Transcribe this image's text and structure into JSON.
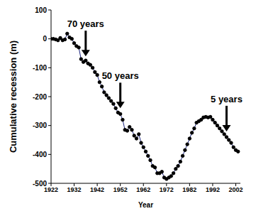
{
  "chart_data": {
    "type": "line",
    "x_label": "Year",
    "y_label": "Cumulative recession (m)",
    "x": [
      1922,
      1923,
      1924,
      1925,
      1926,
      1927,
      1928,
      1929,
      1930,
      1931,
      1932,
      1933,
      1934,
      1935,
      1936,
      1937,
      1938,
      1939,
      1940,
      1941,
      1942,
      1943,
      1944,
      1945,
      1946,
      1947,
      1948,
      1949,
      1950,
      1951,
      1952,
      1953,
      1954,
      1955,
      1956,
      1957,
      1958,
      1959,
      1960,
      1961,
      1962,
      1963,
      1964,
      1965,
      1966,
      1967,
      1968,
      1969,
      1970,
      1971,
      1972,
      1973,
      1974,
      1975,
      1976,
      1977,
      1978,
      1979,
      1980,
      1981,
      1982,
      1983,
      1984,
      1985,
      1986,
      1987,
      1988,
      1989,
      1990,
      1991,
      1992,
      1993,
      1994,
      1995,
      1996,
      1997,
      1998,
      1999,
      2000,
      2001,
      2002,
      2003
    ],
    "values": [
      0,
      0,
      -2,
      -5,
      3,
      -5,
      -2,
      18,
      5,
      0,
      -15,
      -25,
      -30,
      -70,
      -80,
      -75,
      -85,
      -90,
      -100,
      -115,
      -125,
      -150,
      -165,
      -185,
      -195,
      -205,
      -215,
      -225,
      -240,
      -255,
      -260,
      -280,
      -315,
      -318,
      -305,
      -315,
      -335,
      -345,
      -330,
      -360,
      -375,
      -390,
      -405,
      -420,
      -440,
      -445,
      -465,
      -465,
      -460,
      -480,
      -485,
      -480,
      -475,
      -465,
      -450,
      -440,
      -425,
      -405,
      -385,
      -365,
      -345,
      -325,
      -310,
      -290,
      -285,
      -280,
      -272,
      -270,
      -272,
      -270,
      -280,
      -290,
      -300,
      -310,
      -320,
      -330,
      -340,
      -350,
      -360,
      -375,
      -385,
      -390
    ],
    "color": "#1a237e",
    "marker": "circle",
    "xlim": [
      1922,
      2004
    ],
    "xticks": [
      1922,
      1932,
      1942,
      1952,
      1962,
      1972,
      1982,
      1992,
      2002
    ],
    "ylim": [
      -500,
      100
    ],
    "yticks": [
      -500,
      -400,
      -300,
      -200,
      -100,
      0,
      100
    ],
    "grid": false,
    "annotations": [
      {
        "text": "70 years",
        "x": 1937,
        "y": -75
      },
      {
        "text": "50 years",
        "x": 1952,
        "y": -255
      },
      {
        "text": "5 years",
        "x": 1998,
        "y": -335
      }
    ]
  }
}
